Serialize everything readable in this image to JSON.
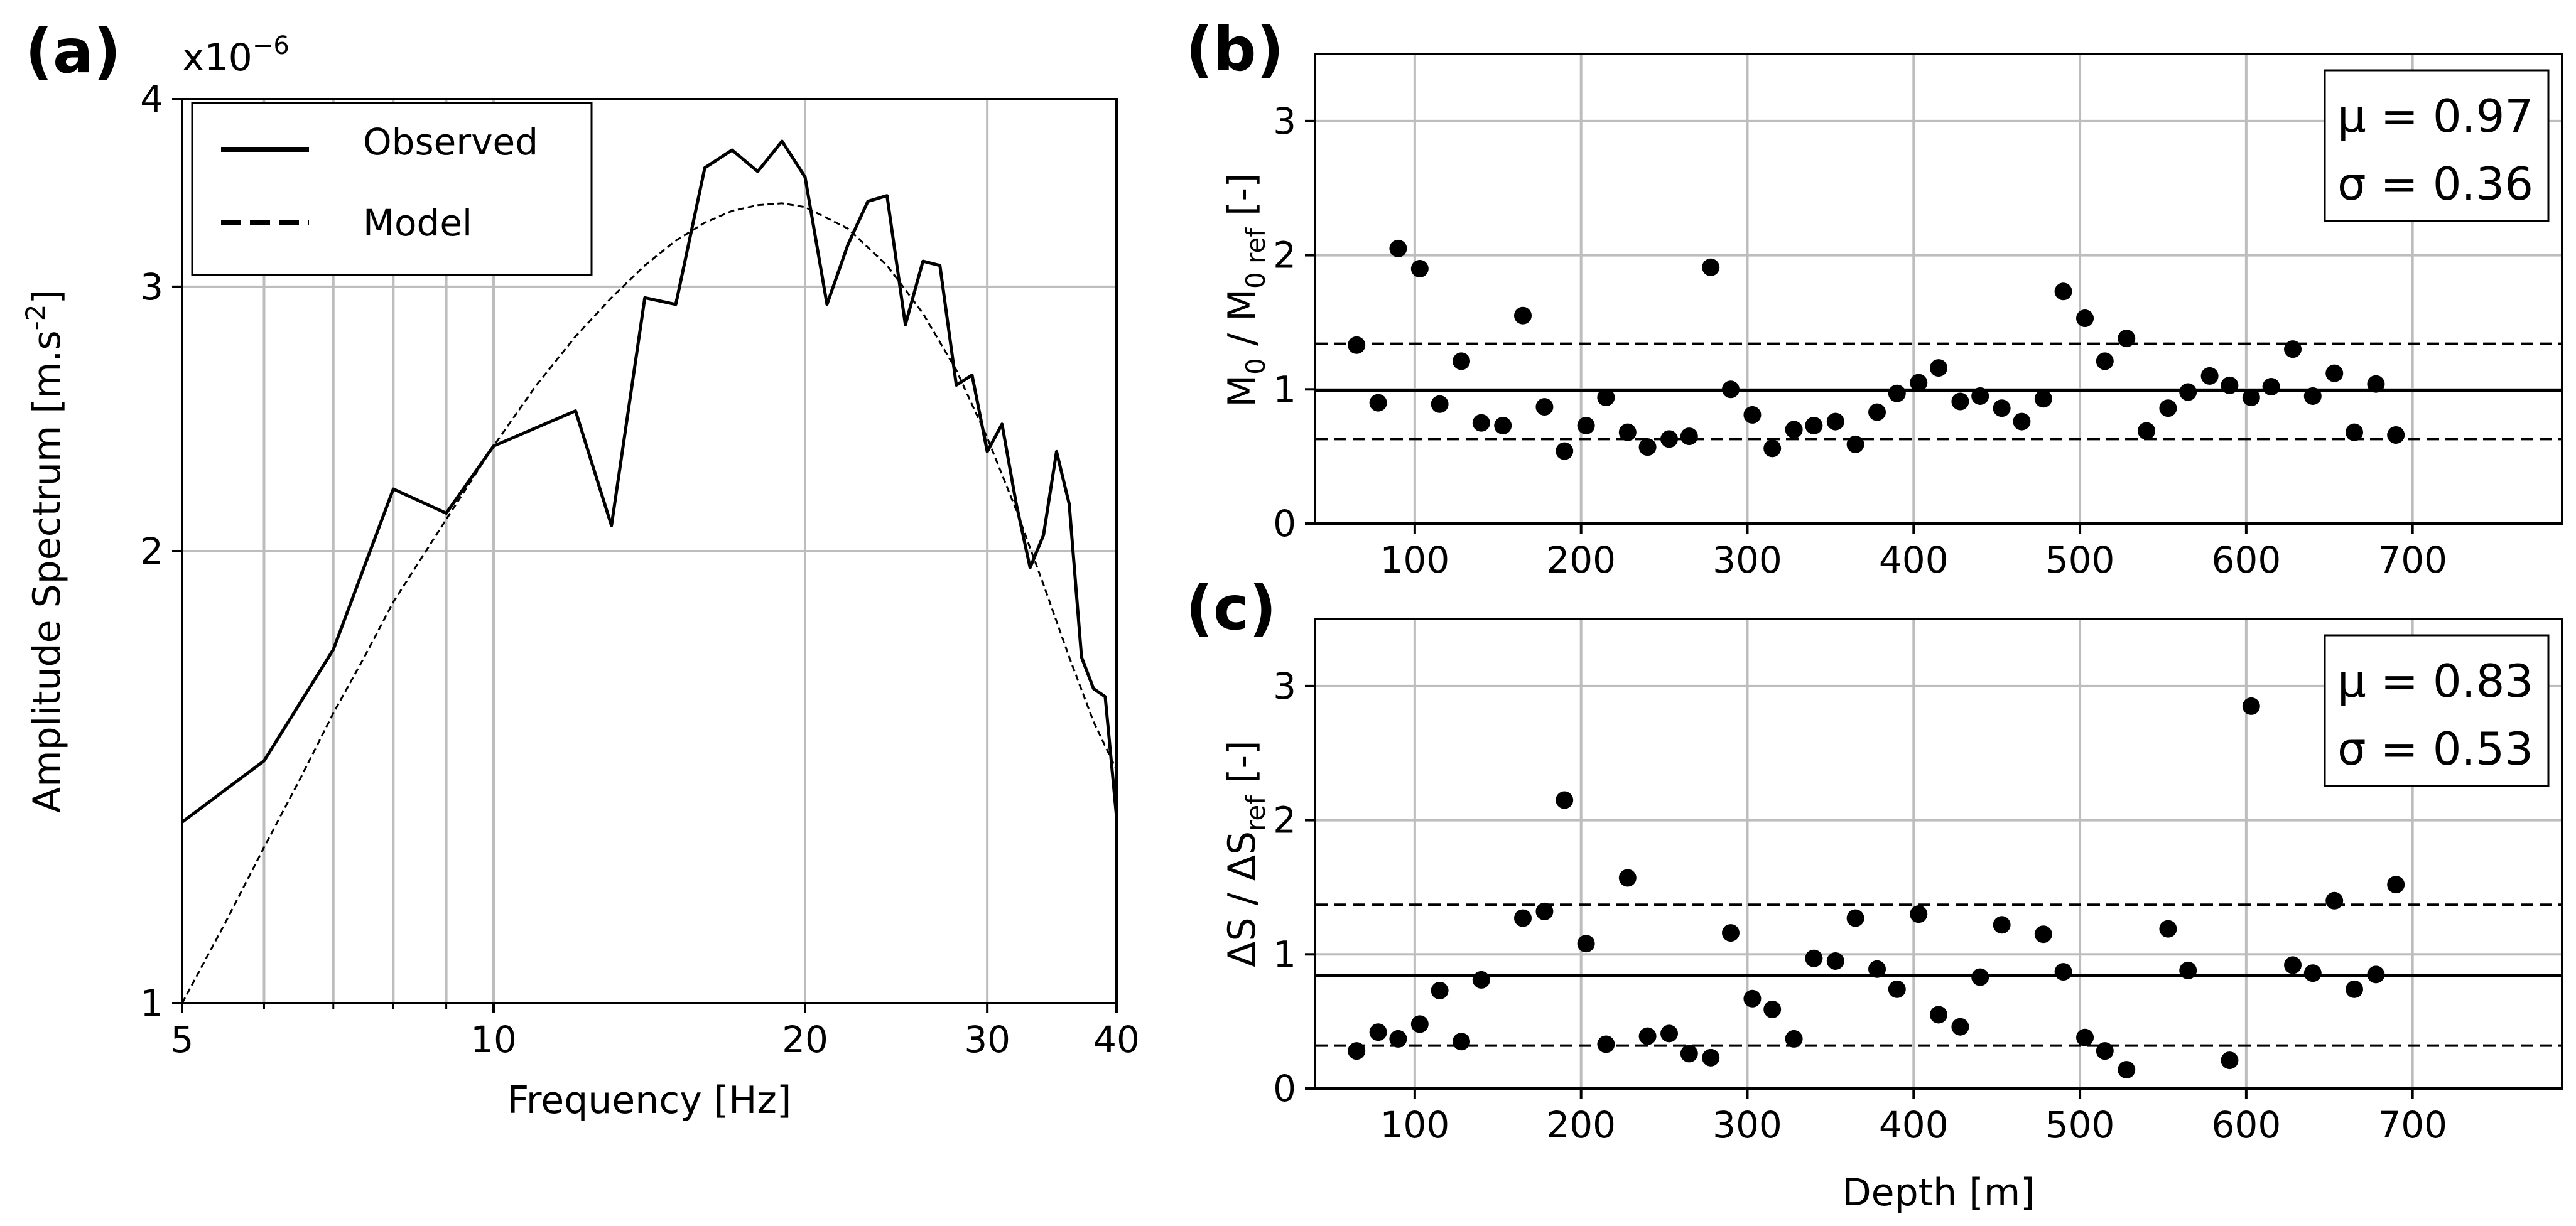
{
  "chart_data": [
    {
      "panel": "(a)",
      "type": "line",
      "xscale": "log",
      "yscale": "log",
      "xlabel": "Frequency [Hz]",
      "ylabel": "Amplitude Spectrum [m.s",
      "ylabel_sup": "-2",
      "ylabel_end": "]",
      "multiplier": "x10",
      "multiplier_exp": "−6",
      "xlim": [
        5,
        40
      ],
      "ylim": [
        1,
        4
      ],
      "xticks": [
        5,
        10,
        20,
        30,
        40
      ],
      "xtick_labels": [
        "5",
        "10",
        "20",
        "30",
        "40"
      ],
      "xminor": [
        6,
        7,
        8,
        9
      ],
      "yticks": [
        1,
        2,
        3,
        4
      ],
      "ytick_labels": [
        "1",
        "2",
        "3",
        "4"
      ],
      "legend": {
        "position": "top-left",
        "entries": [
          "Observed",
          "Model"
        ]
      },
      "series": [
        {
          "name": "Observed",
          "style": "solid",
          "x": [
            5,
            6,
            7,
            8,
            9,
            10,
            12,
            13,
            14,
            15,
            16,
            17,
            18,
            19,
            20,
            21,
            22,
            23,
            24,
            25,
            26,
            27,
            28,
            29,
            30,
            31,
            32,
            33,
            34,
            35,
            36,
            37,
            38,
            39,
            40
          ],
          "y": [
            1.32,
            1.45,
            1.72,
            2.2,
            2.12,
            2.35,
            2.48,
            2.08,
            2.95,
            2.92,
            3.6,
            3.7,
            3.58,
            3.75,
            3.55,
            2.92,
            3.2,
            3.42,
            3.45,
            2.83,
            3.12,
            3.1,
            2.58,
            2.62,
            2.33,
            2.43,
            2.15,
            1.95,
            2.05,
            2.33,
            2.15,
            1.7,
            1.62,
            1.6,
            1.33
          ]
        },
        {
          "name": "Model",
          "style": "dashed",
          "x": [
            5,
            5.5,
            6,
            6.5,
            7,
            7.5,
            8,
            9,
            10,
            11,
            12,
            13,
            14,
            15,
            16,
            17,
            18,
            19,
            20,
            22,
            24,
            26,
            28,
            30,
            32,
            34,
            36,
            38,
            40
          ],
          "y": [
            1.0,
            1.13,
            1.27,
            1.41,
            1.56,
            1.7,
            1.85,
            2.1,
            2.35,
            2.58,
            2.78,
            2.95,
            3.1,
            3.22,
            3.31,
            3.37,
            3.4,
            3.41,
            3.39,
            3.28,
            3.1,
            2.88,
            2.64,
            2.38,
            2.13,
            1.9,
            1.7,
            1.54,
            1.43
          ]
        }
      ]
    },
    {
      "panel": "(b)",
      "type": "scatter",
      "xlabel": "",
      "ylabel": "M",
      "ylabel_sub1": "0",
      "ylabel_mid": " / M",
      "ylabel_sub2": "0 ref",
      "ylabel_end": "  [-]",
      "xlim": [
        40,
        790
      ],
      "ylim": [
        0,
        3.5
      ],
      "xticks": [
        100,
        200,
        300,
        400,
        500,
        600,
        700
      ],
      "xtick_labels": [
        "100",
        "200",
        "300",
        "400",
        "500",
        "600",
        "700"
      ],
      "yticks": [
        0,
        1,
        2,
        3
      ],
      "ytick_labels": [
        "0",
        "1",
        "2",
        "3"
      ],
      "stats": {
        "mu": "μ = 0.97",
        "sigma": "σ = 0.36"
      },
      "mean_line": 0.99,
      "band_lines": [
        1.34,
        0.63
      ],
      "x": [
        65,
        78,
        90,
        103,
        115,
        128,
        140,
        153,
        165,
        178,
        190,
        203,
        215,
        228,
        240,
        253,
        265,
        278,
        290,
        303,
        315,
        328,
        340,
        353,
        365,
        378,
        390,
        403,
        415,
        428,
        440,
        453,
        465,
        478,
        490,
        503,
        515,
        528,
        540,
        553,
        565,
        578,
        590,
        603,
        615,
        628,
        640,
        653,
        665,
        678,
        690
      ],
      "y": [
        1.33,
        0.9,
        2.05,
        1.9,
        0.89,
        1.21,
        0.75,
        0.73,
        1.55,
        0.87,
        0.54,
        0.73,
        0.94,
        0.68,
        0.57,
        0.63,
        0.65,
        1.91,
        1.0,
        0.81,
        0.56,
        0.7,
        0.73,
        0.76,
        0.59,
        0.83,
        0.97,
        1.05,
        1.16,
        0.91,
        0.95,
        0.86,
        0.76,
        0.93,
        1.73,
        1.53,
        1.21,
        1.38,
        0.69,
        0.86,
        0.98,
        1.1,
        1.03,
        0.94,
        1.02,
        1.3,
        0.95,
        1.12,
        0.68,
        1.04,
        0.66
      ]
    },
    {
      "panel": "(c)",
      "type": "scatter",
      "xlabel": "Depth [m]",
      "ylabel": "ΔS / ΔS",
      "ylabel_sub1": "ref",
      "ylabel_end": " [-]",
      "xlim": [
        40,
        790
      ],
      "ylim": [
        0,
        3.5
      ],
      "xticks": [
        100,
        200,
        300,
        400,
        500,
        600,
        700
      ],
      "xtick_labels": [
        "100",
        "200",
        "300",
        "400",
        "500",
        "600",
        "700"
      ],
      "yticks": [
        0,
        1,
        2,
        3
      ],
      "ytick_labels": [
        "0",
        "1",
        "2",
        "3"
      ],
      "stats": {
        "mu": "μ = 0.83",
        "sigma": "σ = 0.53"
      },
      "mean_line": 0.84,
      "band_lines": [
        1.37,
        0.32
      ],
      "x": [
        65,
        78,
        90,
        103,
        115,
        128,
        140,
        165,
        178,
        190,
        203,
        215,
        228,
        240,
        253,
        265,
        278,
        290,
        303,
        315,
        328,
        340,
        353,
        365,
        378,
        390,
        403,
        415,
        428,
        440,
        453,
        478,
        490,
        503,
        515,
        528,
        553,
        565,
        590,
        603,
        628,
        640,
        653,
        665,
        678,
        690
      ],
      "y": [
        0.28,
        0.42,
        0.37,
        0.48,
        0.73,
        0.35,
        0.81,
        1.27,
        1.32,
        2.15,
        1.08,
        0.33,
        1.57,
        0.39,
        0.41,
        0.26,
        0.23,
        1.16,
        0.67,
        0.59,
        0.37,
        0.97,
        0.95,
        1.27,
        0.89,
        0.74,
        1.3,
        0.55,
        0.46,
        0.83,
        1.22,
        1.15,
        0.87,
        0.38,
        0.28,
        0.14,
        1.19,
        0.88,
        0.21,
        2.85,
        0.92,
        0.86,
        1.4,
        0.74,
        0.85,
        1.52
      ]
    }
  ]
}
